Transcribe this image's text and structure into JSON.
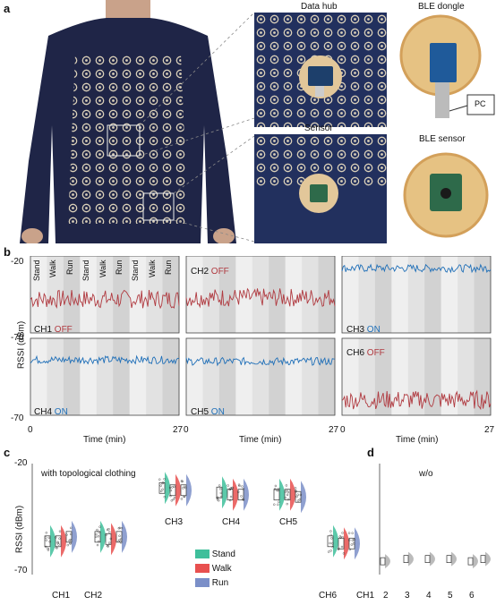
{
  "panel_labels": {
    "a": "a",
    "b": "b",
    "c": "c",
    "d": "d"
  },
  "panel_a": {
    "captions": {
      "data_hub": "Data hub",
      "ble_dongle": "BLE dongle",
      "sensor": "Sensor",
      "ble_sensor": "BLE sensor",
      "pc": "PC"
    }
  },
  "panel_b": {
    "ylabel": "RSSI (dBm)",
    "xlabel": "Time (min)",
    "y_top": "-20",
    "y_bottom": "-70",
    "x_left": "0",
    "x_right": "27",
    "phase_labels": [
      "Stand",
      "Walk",
      "Run",
      "Stand",
      "Walk",
      "Run",
      "Stand",
      "Walk",
      "Run"
    ],
    "channels": [
      {
        "name": "CH1",
        "state": "OFF"
      },
      {
        "name": "CH2",
        "state": "OFF"
      },
      {
        "name": "CH3",
        "state": "ON"
      },
      {
        "name": "CH4",
        "state": "ON"
      },
      {
        "name": "CH5",
        "state": "ON"
      },
      {
        "name": "CH6",
        "state": "OFF"
      }
    ],
    "colors": {
      "off": "#b03a40",
      "on": "#1f6fb8"
    }
  },
  "panel_c": {
    "ylabel": "RSSI (dBm)",
    "y_top": "-20",
    "y_bottom": "-70",
    "annotation": "with topological clothing",
    "channels": [
      "CH1",
      "CH2",
      "CH3",
      "CH4",
      "CH5",
      "CH6"
    ],
    "legend": [
      {
        "label": "Stand",
        "color": "#3fbf9b"
      },
      {
        "label": "Walk",
        "color": "#e8504f"
      },
      {
        "label": "Run",
        "color": "#7b8fc8"
      }
    ]
  },
  "panel_d": {
    "annotation": "w/o",
    "tick_labels": [
      "CH1",
      "2",
      "3",
      "4",
      "5",
      "6"
    ]
  },
  "chart_data": [
    {
      "type": "line",
      "panel": "b",
      "ylabel": "RSSI (dBm)",
      "xlabel": "Time (min)",
      "xlim": [
        0,
        27
      ],
      "ylim": [
        -70,
        -20
      ],
      "series": [
        {
          "name": "CH1",
          "state": "OFF",
          "mean": -48
        },
        {
          "name": "CH2",
          "state": "OFF",
          "mean": -47
        },
        {
          "name": "CH3",
          "state": "ON",
          "mean": -28
        },
        {
          "name": "CH4",
          "state": "ON",
          "mean": -34
        },
        {
          "name": "CH5",
          "state": "ON",
          "mean": -35
        },
        {
          "name": "CH6",
          "state": "OFF",
          "mean": -60
        }
      ]
    },
    {
      "type": "scatter",
      "panel": "c",
      "ylabel": "RSSI (dBm)",
      "ylim": [
        -70,
        -20
      ],
      "categories": [
        "CH1",
        "CH2",
        "CH3",
        "CH4",
        "CH5",
        "CH6"
      ],
      "series": [
        {
          "name": "Stand",
          "values": [
            -55,
            -53,
            -31,
            -33,
            -34,
            -55
          ]
        },
        {
          "name": "Walk",
          "values": [
            -55,
            -54,
            -32,
            -34,
            -34,
            -56
          ]
        },
        {
          "name": "Run",
          "values": [
            -53,
            -53,
            -32,
            -34,
            -35,
            -56
          ]
        }
      ]
    },
    {
      "type": "scatter",
      "panel": "d",
      "ylim": [
        -70,
        -20
      ],
      "categories": [
        "CH1",
        "2",
        "3",
        "4",
        "5",
        "6"
      ],
      "values": [
        -64,
        -63,
        -63,
        -63,
        -64,
        -63
      ]
    }
  ]
}
